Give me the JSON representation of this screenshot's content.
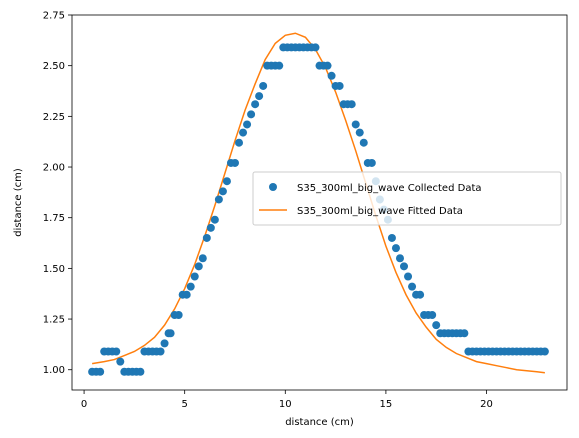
{
  "chart_data": {
    "type": "scatter",
    "title": "",
    "xlabel": "distance (cm)",
    "ylabel": "distance (cm)",
    "xlim": [
      -0.6,
      24.0
    ],
    "ylim": [
      0.9,
      2.75
    ],
    "grid": false,
    "legend": {
      "placement": "center-right"
    },
    "x_ticks": [
      0,
      5,
      10,
      15,
      20
    ],
    "y_ticks": [
      1.0,
      1.25,
      1.5,
      1.75,
      2.0,
      2.25,
      2.5,
      2.75
    ],
    "x_tick_labels": [
      "0",
      "5",
      "10",
      "15",
      "20"
    ],
    "y_tick_labels": [
      "1.00",
      "1.25",
      "1.50",
      "1.75",
      "2.00",
      "2.25",
      "2.50",
      "2.75"
    ],
    "series": [
      {
        "name": "S35_300ml_big_wave Collected Data",
        "kind": "points",
        "color": "#1f77b4",
        "points": [
          [
            0.4,
            0.99
          ],
          [
            0.6,
            0.99
          ],
          [
            0.8,
            0.99
          ],
          [
            1.0,
            1.09
          ],
          [
            1.2,
            1.09
          ],
          [
            1.4,
            1.09
          ],
          [
            1.6,
            1.09
          ],
          [
            1.8,
            1.04
          ],
          [
            2.0,
            0.99
          ],
          [
            2.2,
            0.99
          ],
          [
            2.4,
            0.99
          ],
          [
            2.6,
            0.99
          ],
          [
            2.8,
            0.99
          ],
          [
            3.0,
            1.09
          ],
          [
            3.2,
            1.09
          ],
          [
            3.4,
            1.09
          ],
          [
            3.6,
            1.09
          ],
          [
            3.8,
            1.09
          ],
          [
            4.0,
            1.13
          ],
          [
            4.2,
            1.18
          ],
          [
            4.3,
            1.18
          ],
          [
            4.5,
            1.27
          ],
          [
            4.7,
            1.27
          ],
          [
            4.9,
            1.37
          ],
          [
            5.1,
            1.37
          ],
          [
            5.3,
            1.41
          ],
          [
            5.5,
            1.46
          ],
          [
            5.7,
            1.51
          ],
          [
            5.9,
            1.55
          ],
          [
            6.1,
            1.65
          ],
          [
            6.3,
            1.7
          ],
          [
            6.5,
            1.74
          ],
          [
            6.7,
            1.84
          ],
          [
            6.9,
            1.88
          ],
          [
            7.1,
            1.93
          ],
          [
            7.3,
            2.02
          ],
          [
            7.5,
            2.02
          ],
          [
            7.7,
            2.12
          ],
          [
            7.9,
            2.17
          ],
          [
            8.1,
            2.21
          ],
          [
            8.3,
            2.26
          ],
          [
            8.5,
            2.31
          ],
          [
            8.7,
            2.35
          ],
          [
            8.9,
            2.4
          ],
          [
            9.1,
            2.5
          ],
          [
            9.3,
            2.5
          ],
          [
            9.5,
            2.5
          ],
          [
            9.7,
            2.5
          ],
          [
            9.9,
            2.59
          ],
          [
            10.1,
            2.59
          ],
          [
            10.3,
            2.59
          ],
          [
            10.5,
            2.59
          ],
          [
            10.7,
            2.59
          ],
          [
            10.9,
            2.59
          ],
          [
            11.1,
            2.59
          ],
          [
            11.3,
            2.59
          ],
          [
            11.5,
            2.59
          ],
          [
            11.7,
            2.5
          ],
          [
            11.9,
            2.5
          ],
          [
            12.1,
            2.5
          ],
          [
            12.3,
            2.45
          ],
          [
            12.5,
            2.4
          ],
          [
            12.7,
            2.4
          ],
          [
            12.9,
            2.31
          ],
          [
            13.1,
            2.31
          ],
          [
            13.3,
            2.31
          ],
          [
            13.5,
            2.21
          ],
          [
            13.7,
            2.17
          ],
          [
            13.9,
            2.12
          ],
          [
            14.1,
            2.02
          ],
          [
            14.3,
            2.02
          ],
          [
            14.5,
            1.93
          ],
          [
            14.7,
            1.84
          ],
          [
            14.9,
            1.79
          ],
          [
            15.1,
            1.74
          ],
          [
            15.3,
            1.65
          ],
          [
            15.5,
            1.6
          ],
          [
            15.7,
            1.55
          ],
          [
            15.9,
            1.51
          ],
          [
            16.1,
            1.46
          ],
          [
            16.3,
            1.41
          ],
          [
            16.5,
            1.37
          ],
          [
            16.7,
            1.37
          ],
          [
            16.9,
            1.27
          ],
          [
            17.1,
            1.27
          ],
          [
            17.3,
            1.27
          ],
          [
            17.5,
            1.22
          ],
          [
            17.7,
            1.18
          ],
          [
            17.9,
            1.18
          ],
          [
            18.1,
            1.18
          ],
          [
            18.3,
            1.18
          ],
          [
            18.5,
            1.18
          ],
          [
            18.7,
            1.18
          ],
          [
            18.9,
            1.18
          ],
          [
            19.1,
            1.09
          ],
          [
            19.3,
            1.09
          ],
          [
            19.5,
            1.09
          ],
          [
            19.7,
            1.09
          ],
          [
            19.9,
            1.09
          ],
          [
            20.1,
            1.09
          ],
          [
            20.3,
            1.09
          ],
          [
            20.5,
            1.09
          ],
          [
            20.7,
            1.09
          ],
          [
            20.9,
            1.09
          ],
          [
            21.1,
            1.09
          ],
          [
            21.3,
            1.09
          ],
          [
            21.5,
            1.09
          ],
          [
            21.7,
            1.09
          ],
          [
            21.9,
            1.09
          ],
          [
            22.1,
            1.09
          ],
          [
            22.3,
            1.09
          ],
          [
            22.5,
            1.09
          ],
          [
            22.7,
            1.09
          ],
          [
            22.9,
            1.09
          ]
        ]
      },
      {
        "name": "S35_300ml_big_wave Fitted Data",
        "kind": "line",
        "color": "#ff7f0e",
        "points": [
          [
            0.4,
            1.03
          ],
          [
            1.0,
            1.04
          ],
          [
            1.5,
            1.05
          ],
          [
            2.0,
            1.07
          ],
          [
            2.5,
            1.09
          ],
          [
            3.0,
            1.12
          ],
          [
            3.5,
            1.16
          ],
          [
            4.0,
            1.22
          ],
          [
            4.5,
            1.3
          ],
          [
            5.0,
            1.4
          ],
          [
            5.5,
            1.52
          ],
          [
            6.0,
            1.66
          ],
          [
            6.5,
            1.81
          ],
          [
            7.0,
            1.97
          ],
          [
            7.5,
            2.13
          ],
          [
            8.0,
            2.28
          ],
          [
            8.5,
            2.41
          ],
          [
            9.0,
            2.53
          ],
          [
            9.5,
            2.61
          ],
          [
            10.0,
            2.65
          ],
          [
            10.5,
            2.66
          ],
          [
            11.0,
            2.64
          ],
          [
            11.5,
            2.58
          ],
          [
            12.0,
            2.49
          ],
          [
            12.5,
            2.37
          ],
          [
            13.0,
            2.23
          ],
          [
            13.5,
            2.08
          ],
          [
            14.0,
            1.92
          ],
          [
            14.5,
            1.76
          ],
          [
            15.0,
            1.61
          ],
          [
            15.5,
            1.48
          ],
          [
            16.0,
            1.37
          ],
          [
            16.5,
            1.28
          ],
          [
            17.0,
            1.21
          ],
          [
            17.5,
            1.15
          ],
          [
            18.0,
            1.11
          ],
          [
            18.5,
            1.08
          ],
          [
            19.0,
            1.06
          ],
          [
            19.5,
            1.04
          ],
          [
            20.0,
            1.03
          ],
          [
            20.5,
            1.02
          ],
          [
            21.0,
            1.01
          ],
          [
            21.5,
            1.0
          ],
          [
            22.0,
            0.995
          ],
          [
            22.5,
            0.99
          ],
          [
            22.9,
            0.985
          ]
        ]
      }
    ]
  }
}
